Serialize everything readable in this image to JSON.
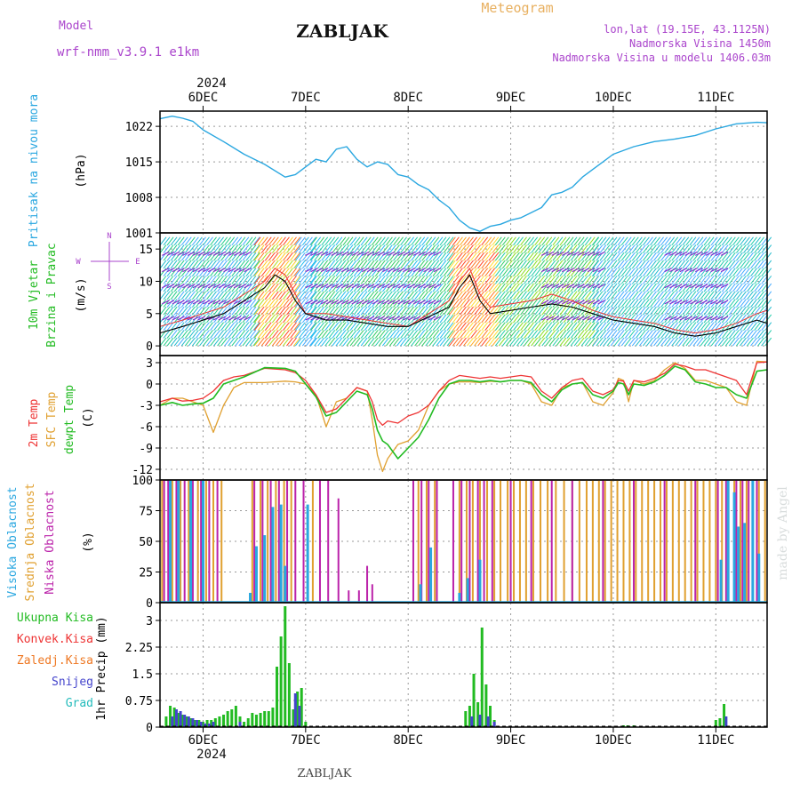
{
  "header": {
    "title": "ZABLJAK",
    "subtitle": "Meteogram",
    "model_label": "Model",
    "model_name": "wrf-nmm_v3.9.1 e1km",
    "location": "lon,lat (19.15E, 43.1125N)",
    "elevation": "Nadmorska Visina 1450m",
    "model_elevation": "Nadmorska Visina u modelu 1406.03m",
    "footer": "ZABLJAK",
    "watermark": "made by Angel",
    "year": "2024",
    "day_labels": [
      "6DEC",
      "7DEC",
      "8DEC",
      "9DEC",
      "10DEC",
      "11DEC"
    ]
  },
  "colors": {
    "pressure": "#2aa7e0",
    "temp2m": "#ee3333",
    "sfc": "#e0a030",
    "dewpt": "#22bb22",
    "visoka": "#2aa7e0",
    "srednja": "#e0a030",
    "niska": "#bb22aa",
    "ukupna": "#22bb22",
    "konvek": "#ee3333",
    "zaledj": "#ee7722",
    "snijeg": "#4444cc",
    "grad": "#22bbbb",
    "model": "#aa44cc"
  },
  "chart_data": [
    {
      "type": "line",
      "panel": "pressure",
      "ylabel": [
        "Pritisak na nivou mora",
        "(hPa)"
      ],
      "yticks": [
        1001,
        1008,
        1015,
        1022
      ],
      "ylim": [
        1001,
        1025
      ],
      "x": [
        5.58,
        5.7,
        5.8,
        5.9,
        6.0,
        6.2,
        6.4,
        6.6,
        6.8,
        6.9,
        7.0,
        7.1,
        7.2,
        7.3,
        7.4,
        7.5,
        7.6,
        7.7,
        7.8,
        7.9,
        8.0,
        8.1,
        8.2,
        8.3,
        8.4,
        8.5,
        8.6,
        8.7,
        8.8,
        8.9,
        9.0,
        9.1,
        9.2,
        9.3,
        9.4,
        9.5,
        9.6,
        9.7,
        9.8,
        9.9,
        10.0,
        10.2,
        10.4,
        10.6,
        10.8,
        11.0,
        11.2,
        11.4,
        11.5
      ],
      "series": [
        {
          "values": [
            1023.5,
            1024.0,
            1023.6,
            1023.0,
            1021.3,
            1019.0,
            1016.5,
            1014.5,
            1012.0,
            1012.5,
            1014.0,
            1015.5,
            1015.0,
            1017.5,
            1018.0,
            1015.5,
            1014.0,
            1015.0,
            1014.5,
            1012.5,
            1012.0,
            1010.5,
            1009.5,
            1007.5,
            1006.0,
            1003.5,
            1002.0,
            1001.3,
            1002.3,
            1002.7,
            1003.5,
            1004.0,
            1005.0,
            1006.0,
            1008.5,
            1009.0,
            1010.0,
            1012.0,
            1013.5,
            1015.0,
            1016.5,
            1018.0,
            1019.0,
            1019.5,
            1020.2,
            1021.5,
            1022.5,
            1022.8,
            1022.7
          ]
        }
      ]
    },
    {
      "type": "line",
      "panel": "wind",
      "ylabel": [
        "10m Vjetar",
        "Brzina i Pravac",
        "(m/s)"
      ],
      "yticks": [
        0,
        5,
        10,
        15
      ],
      "ylim": [
        -1.5,
        17.5
      ],
      "direction_legend": [
        "W",
        "E",
        "N",
        "S"
      ],
      "x": [
        5.58,
        5.8,
        6.0,
        6.2,
        6.4,
        6.6,
        6.7,
        6.8,
        6.9,
        7.0,
        7.2,
        7.4,
        7.6,
        7.8,
        8.0,
        8.2,
        8.4,
        8.5,
        8.6,
        8.7,
        8.8,
        9.0,
        9.2,
        9.4,
        9.6,
        9.8,
        10.0,
        10.2,
        10.4,
        10.6,
        10.8,
        11.0,
        11.2,
        11.4,
        11.5
      ],
      "series": [
        {
          "name": "black",
          "values": [
            2,
            3,
            4,
            5,
            7,
            9,
            11,
            10,
            7,
            5,
            4,
            4,
            3.5,
            3,
            3,
            4.5,
            6,
            9,
            11,
            7,
            5,
            5.5,
            6,
            6.5,
            6,
            5,
            4,
            3.5,
            3,
            2,
            1.5,
            2,
            3,
            4,
            3.5
          ]
        },
        {
          "name": "red",
          "values": [
            3,
            4,
            5,
            6,
            8,
            10,
            12,
            11,
            8,
            5,
            5,
            4.5,
            4,
            3.5,
            3,
            5,
            7,
            10,
            12,
            8,
            6,
            6.5,
            7,
            8,
            7,
            5.5,
            4.5,
            4,
            3.5,
            2.5,
            2,
            2.5,
            3.5,
            5,
            5.5
          ]
        }
      ]
    },
    {
      "type": "line",
      "panel": "temperature",
      "ylabel": [
        "2m Temp",
        "SFC Temp",
        "dewpt Temp",
        "(C)"
      ],
      "yticks": [
        3,
        0,
        -3,
        -6,
        -9,
        -12
      ],
      "ylim": [
        -13.5,
        4
      ],
      "x": [
        5.58,
        5.7,
        5.8,
        5.9,
        6.0,
        6.1,
        6.2,
        6.3,
        6.4,
        6.6,
        6.8,
        6.9,
        7.0,
        7.1,
        7.2,
        7.3,
        7.4,
        7.5,
        7.6,
        7.65,
        7.7,
        7.75,
        7.8,
        7.9,
        8.0,
        8.1,
        8.2,
        8.3,
        8.4,
        8.5,
        8.6,
        8.7,
        8.8,
        8.9,
        9.0,
        9.1,
        9.2,
        9.3,
        9.4,
        9.5,
        9.6,
        9.7,
        9.8,
        9.9,
        10.0,
        10.05,
        10.1,
        10.15,
        10.2,
        10.3,
        10.4,
        10.5,
        10.6,
        10.7,
        10.8,
        10.9,
        11.0,
        11.1,
        11.2,
        11.3,
        11.4,
        11.5
      ],
      "series": [
        {
          "name": "2m",
          "values": [
            -2.5,
            -2.0,
            -2.4,
            -2.3,
            -2.0,
            -1.0,
            0.5,
            1.0,
            1.2,
            2.2,
            2.0,
            1.6,
            0.5,
            -1.5,
            -4.0,
            -3.5,
            -2.0,
            -0.5,
            -1.0,
            -2.5,
            -5.0,
            -5.8,
            -5.2,
            -5.5,
            -4.5,
            -4.0,
            -3.0,
            -1.0,
            0.5,
            1.2,
            1.0,
            0.8,
            1.0,
            0.8,
            1.0,
            1.2,
            1.0,
            -1.0,
            -2.0,
            -0.5,
            0.5,
            0.8,
            -1.0,
            -1.5,
            -0.8,
            0.5,
            0.4,
            -1.0,
            0.5,
            0.3,
            0.8,
            1.5,
            2.8,
            2.5,
            2.0,
            2.0,
            1.5,
            1.0,
            0.5,
            -1.5,
            3.0,
            3.1
          ]
        },
        {
          "name": "sfc",
          "values": [
            -3.0,
            -2.0,
            -2.0,
            -2.5,
            -3.0,
            -6.8,
            -3.0,
            -0.5,
            0.2,
            0.2,
            0.4,
            0.3,
            0.0,
            -1.5,
            -6.0,
            -2.5,
            -2.0,
            -0.5,
            -1.0,
            -5.0,
            -10.0,
            -12.3,
            -10.5,
            -8.5,
            -8.0,
            -6.5,
            -3.0,
            -1.0,
            0.0,
            0.3,
            0.3,
            0.2,
            0.4,
            0.3,
            0.5,
            0.5,
            0.0,
            -2.5,
            -3.0,
            -0.5,
            0.0,
            0.2,
            -2.5,
            -3.0,
            -1.2,
            0.8,
            0.5,
            -2.5,
            0.5,
            0.0,
            0.5,
            2.0,
            3.0,
            2.2,
            0.5,
            0.5,
            0.0,
            -0.5,
            -2.5,
            -3.0,
            3.2,
            3.1
          ]
        },
        {
          "name": "dewpt",
          "values": [
            -3.0,
            -2.6,
            -3.0,
            -2.8,
            -2.7,
            -2.0,
            0.0,
            0.5,
            1.0,
            2.3,
            2.2,
            1.8,
            0.0,
            -1.8,
            -4.5,
            -4.0,
            -2.5,
            -1.0,
            -1.5,
            -3.5,
            -6.5,
            -8.0,
            -8.5,
            -10.5,
            -9.0,
            -7.5,
            -5.0,
            -2.0,
            0.0,
            0.5,
            0.5,
            0.3,
            0.5,
            0.3,
            0.5,
            0.5,
            0.2,
            -1.5,
            -2.5,
            -0.8,
            0.0,
            0.2,
            -1.5,
            -2.0,
            -1.0,
            0.2,
            0.0,
            -1.5,
            0.0,
            -0.2,
            0.3,
            1.2,
            2.5,
            2.0,
            0.3,
            0.0,
            -0.5,
            -0.5,
            -1.5,
            -2.0,
            1.8,
            2.0
          ]
        }
      ]
    },
    {
      "type": "bar",
      "panel": "cloud",
      "ylabel": [
        "Visoka Oblacnost",
        "Srednja Oblacnost",
        "Niska Oblacnost",
        "(%)"
      ],
      "yticks": [
        0,
        25,
        50,
        75,
        100
      ],
      "ylim": [
        0,
        100
      ],
      "series": [
        {
          "name": "srednja",
          "x": [
            5.6,
            5.7,
            5.78,
            5.86,
            5.95,
            6.03,
            6.1,
            6.18,
            6.48,
            6.56,
            6.63,
            6.71,
            6.79,
            6.86,
            7.07,
            8.1,
            8.18,
            8.26,
            8.5,
            8.57,
            8.63,
            8.7,
            8.77,
            8.84,
            8.9,
            8.97,
            9.03,
            9.09,
            9.15,
            9.22,
            9.29,
            9.36,
            9.44,
            9.52,
            9.6,
            9.67,
            9.74,
            9.8,
            9.86,
            9.92,
            9.98,
            10.04,
            10.1,
            10.16,
            10.22,
            10.28,
            10.34,
            10.4,
            10.46,
            10.52,
            10.58,
            10.64,
            10.7,
            10.76,
            10.82,
            10.88,
            10.94,
            11.0,
            11.06,
            11.12,
            11.18,
            11.24,
            11.3,
            11.36,
            11.42,
            11.48
          ],
          "values": [
            100,
            100,
            100,
            100,
            100,
            100,
            100,
            100,
            100,
            100,
            100,
            100,
            100,
            100,
            100,
            100,
            100,
            100,
            100,
            100,
            100,
            100,
            100,
            100,
            100,
            100,
            100,
            100,
            100,
            100,
            100,
            100,
            100,
            100,
            100,
            100,
            100,
            100,
            100,
            100,
            100,
            100,
            100,
            100,
            100,
            100,
            100,
            100,
            100,
            100,
            100,
            100,
            100,
            100,
            100,
            100,
            100,
            100,
            100,
            100,
            100,
            100,
            100,
            100,
            100,
            100
          ]
        },
        {
          "name": "niska",
          "x": [
            5.62,
            5.66,
            5.74,
            5.82,
            5.9,
            5.98,
            6.06,
            6.14,
            6.5,
            6.58,
            6.66,
            6.74,
            6.82,
            6.9,
            6.98,
            7.14,
            7.22,
            7.32,
            7.42,
            7.52,
            7.6,
            7.65,
            8.05,
            8.13,
            8.2,
            8.28,
            8.44,
            8.52,
            8.6,
            8.68,
            8.74,
            8.82,
            9.0,
            9.2,
            9.4,
            9.6,
            9.9,
            10.2,
            10.5,
            10.8,
            11.02,
            11.1,
            11.2,
            11.26,
            11.32,
            11.4
          ],
          "values": [
            100,
            100,
            100,
            100,
            100,
            100,
            100,
            100,
            100,
            100,
            100,
            100,
            100,
            100,
            100,
            100,
            100,
            85,
            10,
            10,
            30,
            15,
            100,
            100,
            100,
            100,
            100,
            100,
            100,
            100,
            100,
            100,
            100,
            100,
            100,
            100,
            100,
            100,
            100,
            100,
            100,
            100,
            100,
            100,
            100,
            100
          ]
        },
        {
          "name": "visoka",
          "x": [
            5.68,
            5.76,
            5.88,
            6.0,
            6.46,
            6.52,
            6.6,
            6.68,
            6.76,
            6.8,
            7.02,
            8.12,
            8.22,
            8.5,
            8.58,
            8.7,
            11.05,
            11.12,
            11.18,
            11.22,
            11.28,
            11.36,
            11.42
          ],
          "values": [
            100,
            100,
            100,
            100,
            8,
            46,
            55,
            78,
            80,
            30,
            80,
            15,
            45,
            8,
            20,
            35,
            35,
            100,
            90,
            62,
            65,
            100,
            40
          ]
        }
      ]
    },
    {
      "type": "bar",
      "panel": "precip",
      "ylabel": [
        "1hr Precip (mm)"
      ],
      "legend": [
        "Ukupna Kisa",
        "Konvek.Kisa",
        "Zaledj.Kisa",
        "Snijeg",
        "Grad"
      ],
      "yticks": [
        0,
        0.75,
        1.5,
        2.25,
        3
      ],
      "ytick_labels": [
        "0",
        "0.75",
        "1.5",
        "2.25",
        "3"
      ],
      "ylim": [
        0,
        3.5
      ],
      "series": [
        {
          "name": "ukupna",
          "x": [
            5.64,
            5.68,
            5.72,
            5.76,
            5.8,
            5.84,
            5.88,
            5.92,
            5.96,
            6.0,
            6.04,
            6.08,
            6.12,
            6.16,
            6.2,
            6.24,
            6.28,
            6.32,
            6.36,
            6.4,
            6.44,
            6.48,
            6.52,
            6.56,
            6.6,
            6.64,
            6.68,
            6.72,
            6.76,
            6.8,
            6.84,
            6.88,
            6.92,
            6.96,
            7.0,
            7.04,
            8.56,
            8.6,
            8.64,
            8.68,
            8.72,
            8.76,
            8.8,
            8.84,
            8.88,
            10.1,
            10.14,
            10.2,
            11.0,
            11.04,
            11.08,
            11.12
          ],
          "values": [
            0.3,
            0.6,
            0.55,
            0.4,
            0.35,
            0.3,
            0.25,
            0.2,
            0.2,
            0.15,
            0.2,
            0.2,
            0.25,
            0.3,
            0.35,
            0.45,
            0.5,
            0.6,
            0.3,
            0.15,
            0.25,
            0.4,
            0.35,
            0.4,
            0.45,
            0.45,
            0.55,
            1.7,
            2.55,
            3.4,
            1.8,
            0.5,
            1.0,
            1.1,
            0.15,
            0.0,
            0.45,
            0.6,
            1.5,
            0.7,
            2.8,
            1.2,
            0.6,
            0.2,
            0.0,
            0.05,
            0.05,
            0.05,
            0.2,
            0.25,
            0.65,
            0.0
          ]
        },
        {
          "name": "snijeg",
          "x": [
            5.7,
            5.74,
            5.78,
            5.82,
            5.86,
            5.9,
            5.94,
            5.98,
            6.02,
            6.06,
            6.1,
            6.36,
            6.9,
            6.94,
            8.62,
            8.7,
            8.78,
            8.84,
            11.1
          ],
          "values": [
            0.3,
            0.5,
            0.45,
            0.35,
            0.3,
            0.25,
            0.2,
            0.15,
            0.1,
            0.1,
            0.15,
            0.15,
            0.95,
            0.6,
            0.3,
            0.35,
            0.3,
            0.15,
            0.3
          ]
        }
      ]
    }
  ]
}
